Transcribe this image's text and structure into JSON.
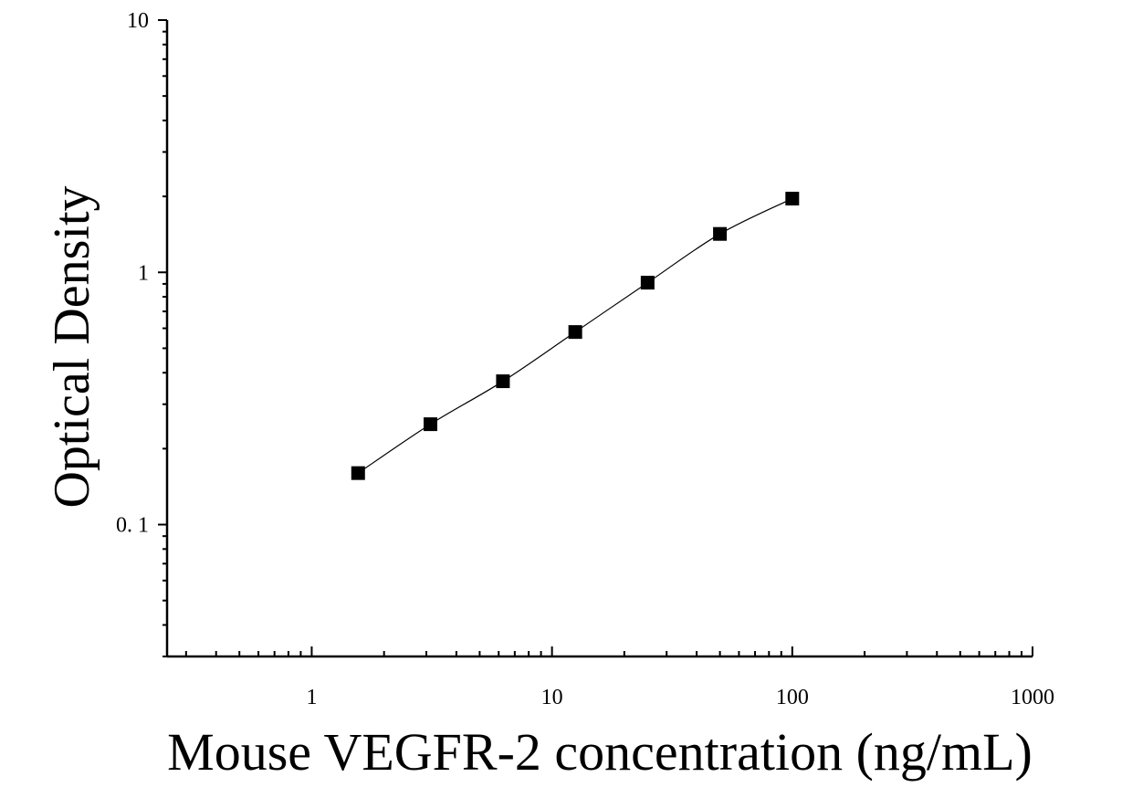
{
  "chart_data": {
    "type": "scatter",
    "title": "",
    "xlabel": "Mouse VEGFR-2 concentration (ng/mL)",
    "ylabel": "Optical Density",
    "x_scale": "log",
    "y_scale": "log",
    "xlim": [
      0.25,
      1000
    ],
    "ylim": [
      0.03,
      10
    ],
    "grid": false,
    "legend": "none",
    "x_ticks": [
      1,
      10,
      100,
      1000
    ],
    "x_tick_labels": [
      "1",
      "10",
      "100",
      "1000"
    ],
    "y_ticks": [
      0.1,
      1,
      10
    ],
    "y_tick_labels": [
      "0. 1",
      "1",
      "10"
    ],
    "colors": {
      "marker": "#000000",
      "curve": "#000000",
      "axis": "#000000"
    },
    "series": [
      {
        "marker": "square",
        "x": [
          1.56,
          3.12,
          6.25,
          12.5,
          25,
          50,
          100
        ],
        "y": [
          0.16,
          0.25,
          0.37,
          0.58,
          0.91,
          1.42,
          1.96
        ]
      }
    ],
    "fit_curve": true
  }
}
